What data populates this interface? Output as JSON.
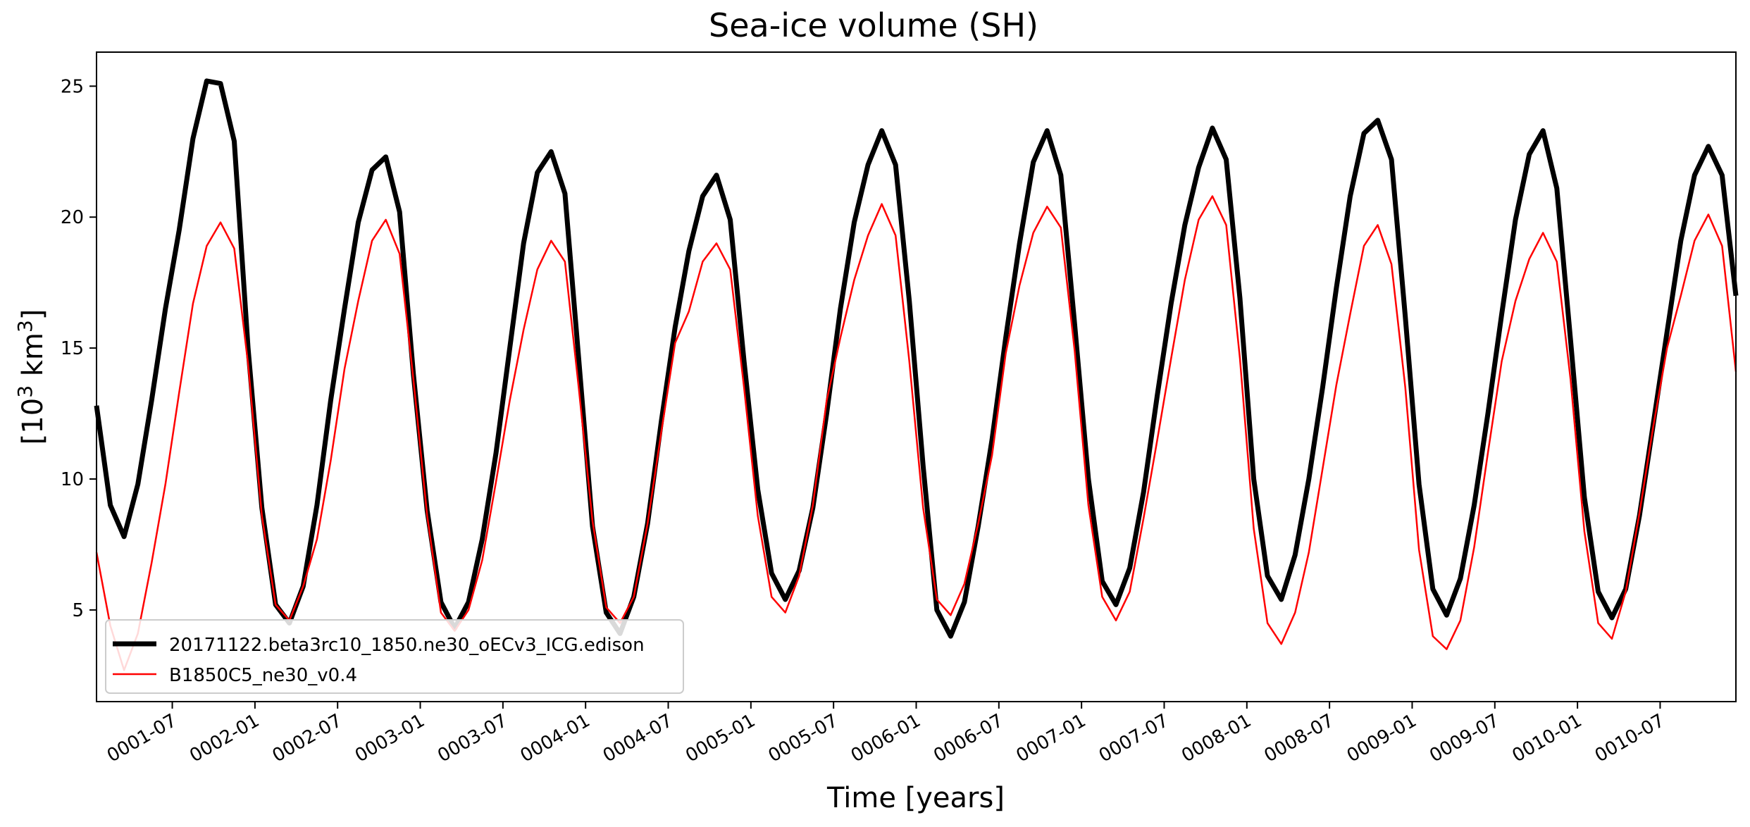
{
  "chart_data": {
    "type": "line",
    "title": "Sea-ice volume (SH)",
    "xlabel": "Time [years]",
    "ylabel_base": "[10",
    "ylabel_exp1": "3",
    "ylabel_mid": " km",
    "ylabel_exp2": "3",
    "ylabel_end": "]",
    "x_tick_labels": [
      "0001-07",
      "0002-01",
      "0002-07",
      "0003-01",
      "0003-07",
      "0004-01",
      "0004-07",
      "0005-01",
      "0005-07",
      "0006-01",
      "0006-07",
      "0007-01",
      "0007-07",
      "0008-01",
      "0008-07",
      "0009-01",
      "0009-07",
      "0010-01",
      "0010-07"
    ],
    "x_tick_months": [
      6,
      12,
      18,
      24,
      30,
      36,
      42,
      48,
      54,
      60,
      66,
      72,
      78,
      84,
      90,
      96,
      102,
      108,
      114
    ],
    "xlim": [
      0.5,
      119.5
    ],
    "y_ticks": [
      5,
      10,
      15,
      20,
      25
    ],
    "ylim": [
      1.5,
      26.3
    ],
    "legend_position": "lower left",
    "grid": false,
    "x": [
      0.5,
      1.5,
      2.5,
      3.5,
      4.5,
      5.5,
      6.5,
      7.5,
      8.5,
      9.5,
      10.5,
      11.5,
      12.5,
      13.5,
      14.5,
      15.5,
      16.5,
      17.5,
      18.5,
      19.5,
      20.5,
      21.5,
      22.5,
      23.5,
      24.5,
      25.5,
      26.5,
      27.5,
      28.5,
      29.5,
      30.5,
      31.5,
      32.5,
      33.5,
      34.5,
      35.5,
      36.5,
      37.5,
      38.5,
      39.5,
      40.5,
      41.5,
      42.5,
      43.5,
      44.5,
      45.5,
      46.5,
      47.5,
      48.5,
      49.5,
      50.5,
      51.5,
      52.5,
      53.5,
      54.5,
      55.5,
      56.5,
      57.5,
      58.5,
      59.5,
      60.5,
      61.5,
      62.5,
      63.5,
      64.5,
      65.5,
      66.5,
      67.5,
      68.5,
      69.5,
      70.5,
      71.5,
      72.5,
      73.5,
      74.5,
      75.5,
      76.5,
      77.5,
      78.5,
      79.5,
      80.5,
      81.5,
      82.5,
      83.5,
      84.5,
      85.5,
      86.5,
      87.5,
      88.5,
      89.5,
      90.5,
      91.5,
      92.5,
      93.5,
      94.5,
      95.5,
      96.5,
      97.5,
      98.5,
      99.5,
      100.5,
      101.5,
      102.5,
      103.5,
      104.5,
      105.5,
      106.5,
      107.5,
      108.5,
      109.5,
      110.5,
      111.5,
      112.5,
      113.5,
      114.5,
      115.5,
      116.5,
      117.5,
      118.5,
      119.5
    ],
    "series": [
      {
        "name": "20171122.beta3rc10_1850.ne30_oECv3_ICG.edison",
        "color": "#000000",
        "values": [
          12.8,
          9.0,
          7.8,
          9.8,
          13.0,
          16.5,
          19.5,
          23.0,
          25.2,
          25.1,
          22.9,
          15.0,
          8.9,
          5.2,
          4.5,
          5.9,
          9.0,
          13.0,
          16.5,
          19.8,
          21.8,
          22.3,
          20.2,
          14.0,
          8.8,
          5.3,
          4.3,
          5.3,
          7.7,
          11.0,
          15.0,
          19.0,
          21.7,
          22.5,
          20.9,
          14.6,
          8.2,
          4.9,
          4.1,
          5.5,
          8.3,
          12.2,
          15.8,
          18.7,
          20.8,
          21.6,
          19.9,
          14.5,
          9.6,
          6.4,
          5.4,
          6.5,
          8.9,
          12.5,
          16.5,
          19.8,
          22.0,
          23.3,
          22.0,
          16.8,
          10.5,
          5.0,
          4.0,
          5.3,
          8.2,
          11.5,
          15.4,
          19.0,
          22.1,
          23.3,
          21.6,
          15.9,
          10.0,
          6.1,
          5.2,
          6.6,
          9.5,
          13.2,
          16.7,
          19.7,
          21.9,
          23.4,
          22.2,
          16.9,
          10.0,
          6.3,
          5.4,
          7.1,
          10.0,
          13.5,
          17.3,
          20.8,
          23.2,
          23.7,
          22.2,
          16.2,
          9.8,
          5.8,
          4.8,
          6.2,
          9.0,
          12.5,
          16.3,
          19.9,
          22.4,
          23.3,
          21.1,
          15.3,
          9.3,
          5.7,
          4.7,
          5.8,
          8.6,
          12.1,
          15.6,
          19.1,
          21.6,
          22.7,
          21.6,
          17.0
        ]
      },
      {
        "name": "B1850C5_ne30_v0.4",
        "color": "#ff0000",
        "values": [
          7.2,
          4.4,
          2.7,
          4.1,
          6.8,
          9.8,
          13.3,
          16.7,
          18.9,
          19.8,
          18.8,
          14.4,
          8.6,
          5.2,
          4.6,
          5.9,
          7.7,
          10.7,
          14.2,
          16.8,
          19.1,
          19.9,
          18.6,
          13.8,
          8.6,
          4.9,
          4.2,
          5.0,
          6.9,
          9.9,
          13.0,
          15.7,
          18.0,
          19.1,
          18.3,
          13.5,
          8.4,
          5.1,
          4.5,
          5.5,
          8.3,
          11.8,
          15.2,
          16.4,
          18.3,
          19.0,
          18.0,
          13.5,
          8.6,
          5.5,
          4.9,
          6.3,
          9.0,
          13.0,
          15.4,
          17.6,
          19.3,
          20.5,
          19.3,
          14.5,
          8.9,
          5.4,
          4.8,
          6.0,
          8.3,
          10.9,
          14.8,
          17.4,
          19.4,
          20.4,
          19.6,
          14.9,
          9.0,
          5.5,
          4.6,
          5.7,
          8.5,
          11.5,
          14.6,
          17.6,
          19.9,
          20.8,
          19.7,
          14.6,
          8.1,
          4.5,
          3.7,
          4.9,
          7.2,
          10.4,
          13.6,
          16.3,
          18.9,
          19.7,
          18.2,
          13.5,
          7.3,
          4.0,
          3.5,
          4.6,
          7.4,
          11.0,
          14.5,
          16.8,
          18.4,
          19.4,
          18.3,
          13.8,
          8.0,
          4.5,
          3.9,
          5.7,
          8.7,
          12.0,
          15.0,
          17.0,
          19.1,
          20.1,
          18.9,
          14.1
        ]
      }
    ]
  }
}
